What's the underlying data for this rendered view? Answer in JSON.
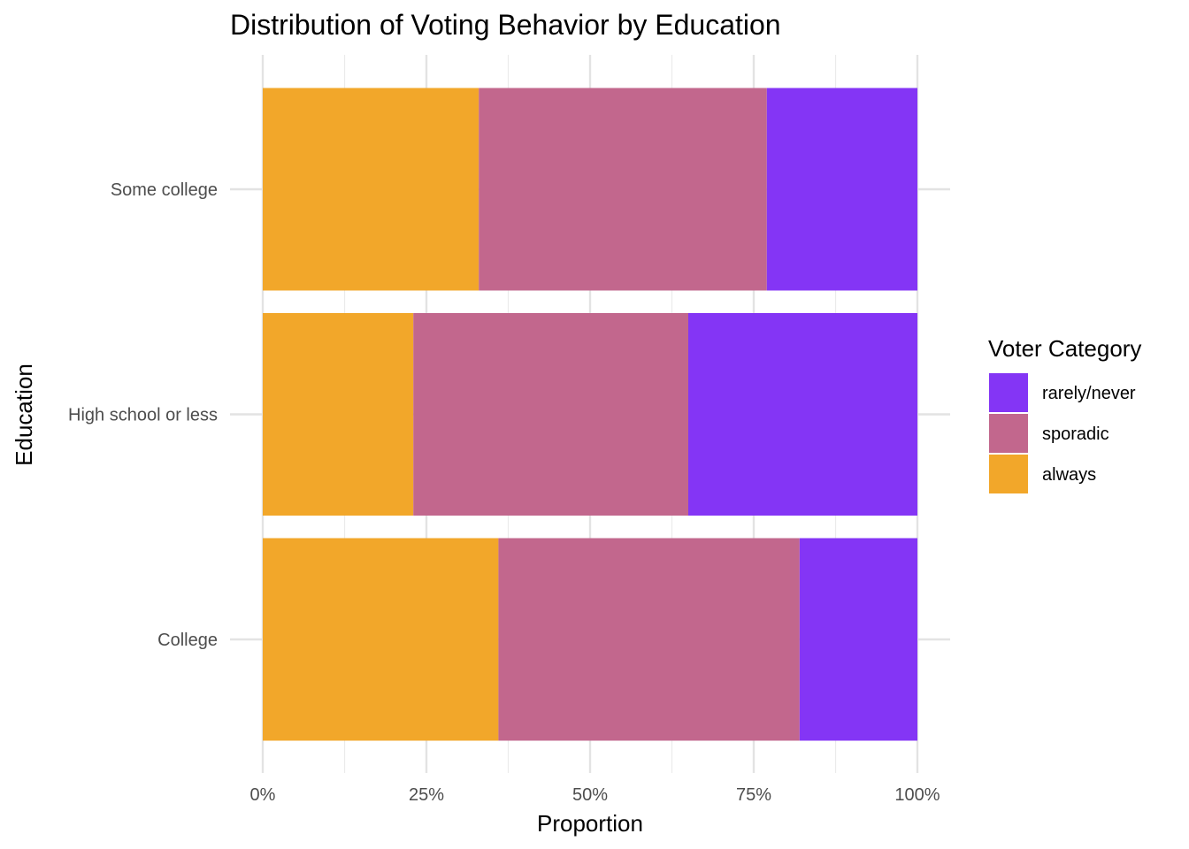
{
  "chart_data": {
    "type": "bar",
    "orientation": "horizontal",
    "stacked": "percent",
    "title": "Distribution of Voting Behavior by Education",
    "xlabel": "Proportion",
    "ylabel": "Education",
    "xlim": [
      0,
      1
    ],
    "x_ticks": [
      0,
      0.25,
      0.5,
      0.75,
      1
    ],
    "x_tick_labels": [
      "0%",
      "25%",
      "50%",
      "75%",
      "100%"
    ],
    "categories": [
      "College",
      "High school or less",
      "Some college"
    ],
    "series": [
      {
        "name": "always",
        "color": "#F2A72A",
        "values": [
          0.36,
          0.23,
          0.33
        ]
      },
      {
        "name": "sporadic",
        "color": "#C2678D",
        "values": [
          0.46,
          0.42,
          0.44
        ]
      },
      {
        "name": "rarely/never",
        "color": "#8435F5",
        "values": [
          0.18,
          0.35,
          0.23
        ]
      }
    ],
    "legend": {
      "title": "Voter Category",
      "position": "right",
      "order": [
        "rarely/never",
        "sporadic",
        "always"
      ]
    },
    "grid": true
  }
}
